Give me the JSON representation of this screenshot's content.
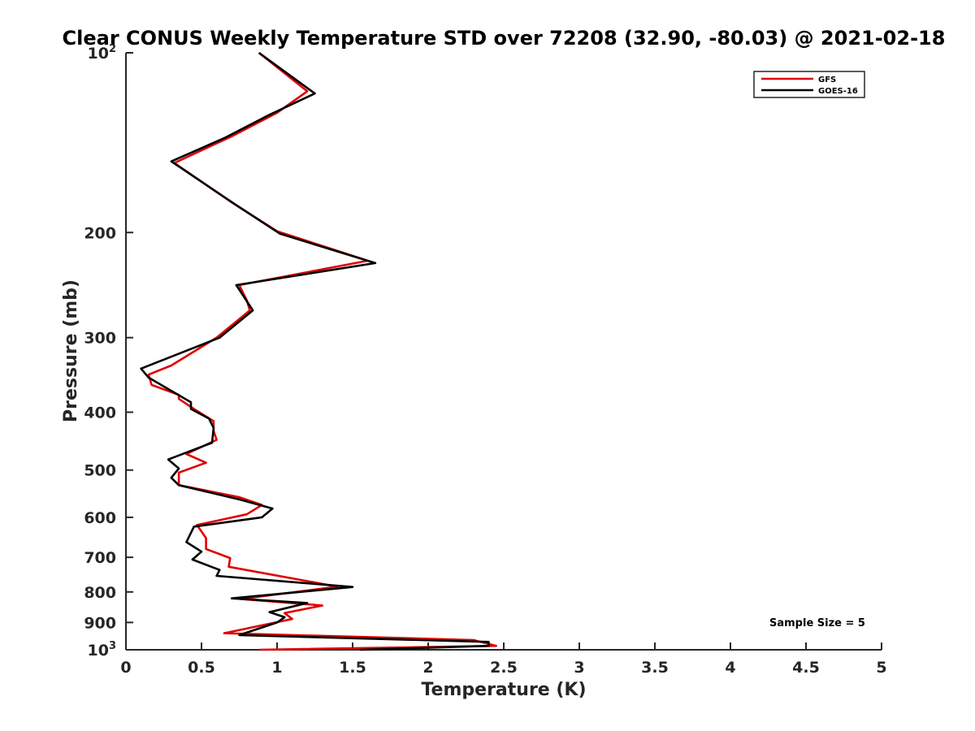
{
  "chart_data": {
    "type": "line",
    "title": "Clear CONUS Weekly Temperature STD over 72208 (32.90, -80.03) @ 2021-02-18",
    "xlabel": "Temperature (K)",
    "ylabel": "Pressure (mb)",
    "xlim": [
      0,
      5
    ],
    "ylim": [
      100,
      1000
    ],
    "y_scale": "log",
    "y_reversed": true,
    "grid": false,
    "legend_position": "top-right",
    "x_ticks": [
      {
        "value": 0,
        "label": "0"
      },
      {
        "value": 0.5,
        "label": "0.5"
      },
      {
        "value": 1,
        "label": "1"
      },
      {
        "value": 1.5,
        "label": "1.5"
      },
      {
        "value": 2,
        "label": "2"
      },
      {
        "value": 2.5,
        "label": "2.5"
      },
      {
        "value": 3,
        "label": "3"
      },
      {
        "value": 3.5,
        "label": "3.5"
      },
      {
        "value": 4,
        "label": "4"
      },
      {
        "value": 4.5,
        "label": "4.5"
      },
      {
        "value": 5,
        "label": "5"
      }
    ],
    "y_ticks": [
      {
        "value": 100,
        "label": "10",
        "sup": "2"
      },
      {
        "value": 200,
        "label": "200"
      },
      {
        "value": 300,
        "label": "300"
      },
      {
        "value": 400,
        "label": "400"
      },
      {
        "value": 500,
        "label": "500"
      },
      {
        "value": 600,
        "label": "600"
      },
      {
        "value": 700,
        "label": "700"
      },
      {
        "value": 800,
        "label": "800"
      },
      {
        "value": 900,
        "label": "900"
      },
      {
        "value": 1000,
        "label": "10",
        "sup": "3"
      }
    ],
    "annotation": "Sample Size = 5",
    "series": [
      {
        "name": "GFS",
        "color": "#e00000",
        "points": [
          [
            0.88,
            100
          ],
          [
            1.2,
            116
          ],
          [
            1.0,
            126
          ],
          [
            0.7,
            138
          ],
          [
            0.32,
            153
          ],
          [
            0.7,
            178
          ],
          [
            1.0,
            199
          ],
          [
            1.6,
            223
          ],
          [
            0.75,
            245
          ],
          [
            0.8,
            260
          ],
          [
            0.82,
            270
          ],
          [
            0.6,
            300
          ],
          [
            0.3,
            334
          ],
          [
            0.15,
            346
          ],
          [
            0.17,
            360
          ],
          [
            0.35,
            374
          ],
          [
            0.35,
            380
          ],
          [
            0.45,
            395
          ],
          [
            0.58,
            414
          ],
          [
            0.58,
            430
          ],
          [
            0.6,
            445
          ],
          [
            0.4,
            470
          ],
          [
            0.53,
            486
          ],
          [
            0.35,
            505
          ],
          [
            0.35,
            530
          ],
          [
            0.75,
            555
          ],
          [
            0.9,
            572
          ],
          [
            0.8,
            593
          ],
          [
            0.47,
            618
          ],
          [
            0.53,
            650
          ],
          [
            0.53,
            678
          ],
          [
            0.69,
            702
          ],
          [
            0.68,
            726
          ],
          [
            1.4,
            784
          ],
          [
            0.76,
            822
          ],
          [
            1.3,
            843
          ],
          [
            1.05,
            868
          ],
          [
            1.1,
            888
          ],
          [
            0.65,
            938
          ],
          [
            2.3,
            963
          ],
          [
            2.45,
            985
          ],
          [
            0.88,
            1000
          ]
        ]
      },
      {
        "name": "GOES-16",
        "color": "#000000",
        "points": [
          [
            0.88,
            100
          ],
          [
            1.25,
            117
          ],
          [
            0.95,
            127
          ],
          [
            0.65,
            139
          ],
          [
            0.3,
            152
          ],
          [
            0.73,
            180
          ],
          [
            1.02,
            201
          ],
          [
            1.65,
            225
          ],
          [
            0.73,
            245
          ],
          [
            0.84,
            270
          ],
          [
            0.62,
            300
          ],
          [
            0.1,
            338
          ],
          [
            0.15,
            350
          ],
          [
            0.43,
            385
          ],
          [
            0.43,
            395
          ],
          [
            0.55,
            410
          ],
          [
            0.58,
            425
          ],
          [
            0.57,
            450
          ],
          [
            0.28,
            480
          ],
          [
            0.35,
            497
          ],
          [
            0.3,
            515
          ],
          [
            0.35,
            530
          ],
          [
            0.75,
            560
          ],
          [
            0.97,
            580
          ],
          [
            0.9,
            600
          ],
          [
            0.45,
            622
          ],
          [
            0.4,
            660
          ],
          [
            0.5,
            685
          ],
          [
            0.44,
            706
          ],
          [
            0.62,
            735
          ],
          [
            0.6,
            752
          ],
          [
            1.5,
            785
          ],
          [
            0.7,
            820
          ],
          [
            1.2,
            835
          ],
          [
            0.95,
            865
          ],
          [
            1.05,
            882
          ],
          [
            1.0,
            900
          ],
          [
            0.75,
            945
          ],
          [
            2.4,
            970
          ],
          [
            2.4,
            985
          ],
          [
            1.55,
            1000
          ]
        ]
      }
    ]
  }
}
